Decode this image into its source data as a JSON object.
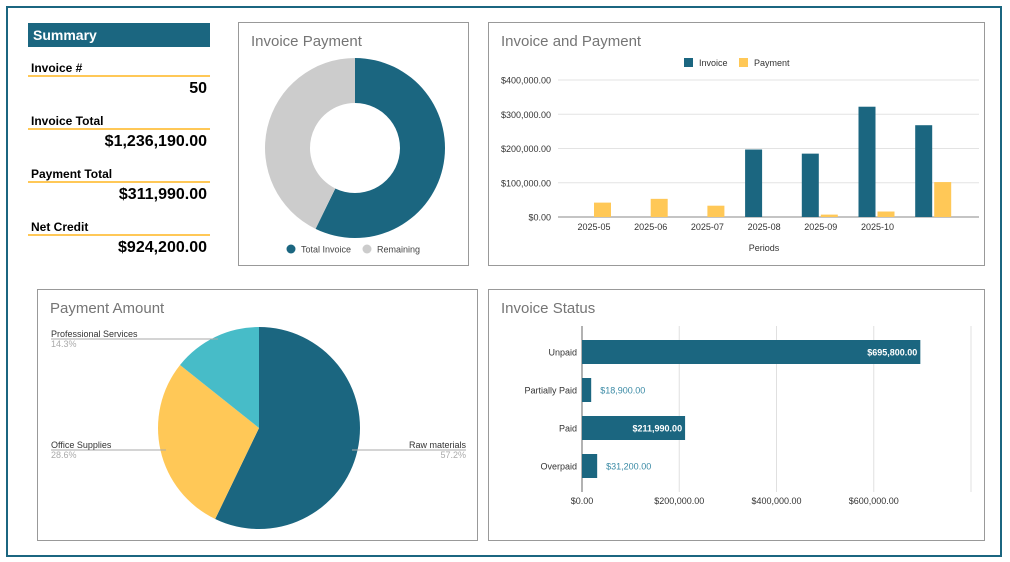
{
  "colors": {
    "frame": "#1b6680",
    "teal": "#1b6680",
    "yellow": "#ffc857",
    "cyan": "#47bcc8",
    "gray": "#cccccc",
    "accent_line": "#ffc857"
  },
  "summary": {
    "title": "Summary",
    "items": [
      {
        "label": "Invoice #",
        "value": "50"
      },
      {
        "label": "Invoice Total",
        "value": "$1,236,190.00"
      },
      {
        "label": "Payment Total",
        "value": "$311,990.00"
      },
      {
        "label": "Net Credit",
        "value": "$924,200.00"
      }
    ]
  },
  "chart_data": [
    {
      "type": "pie",
      "title": "Invoice Payment",
      "donut": true,
      "legend": "bottom",
      "series": [
        {
          "name": "Total Invoice",
          "value": 1236190,
          "color": "#1b6680"
        },
        {
          "name": "Remaining",
          "value": 924200,
          "color": "#cccccc"
        }
      ]
    },
    {
      "type": "bar",
      "title": "Invoice and Payment",
      "xlabel": "Periods",
      "legend": "top",
      "grid": true,
      "categories": [
        "2025-05",
        "2025-06",
        "2025-07",
        "2025-08",
        "2025-09",
        "2025-10",
        ""
      ],
      "ylim": [
        0,
        400000
      ],
      "yticks": [
        "$0.00",
        "$100,000.00",
        "$200,000.00",
        "$300,000.00",
        "$400,000.00"
      ],
      "series": [
        {
          "name": "Invoice",
          "color": "#1b6680",
          "values": [
            0,
            0,
            0,
            197000,
            185000,
            322000,
            268000
          ]
        },
        {
          "name": "Payment",
          "color": "#ffc857",
          "values": [
            42000,
            53000,
            33000,
            0,
            7000,
            16000,
            102000
          ]
        }
      ]
    },
    {
      "type": "pie",
      "title": "Payment Amount",
      "legend": "labels",
      "series": [
        {
          "name": "Raw materials",
          "percent": "57.2%",
          "value": 57.2,
          "color": "#1b6680"
        },
        {
          "name": "Office Supplies",
          "percent": "28.6%",
          "value": 28.6,
          "color": "#ffc857"
        },
        {
          "name": "Professional Services",
          "percent": "14.3%",
          "value": 14.3,
          "color": "#47bcc8"
        }
      ]
    },
    {
      "type": "bar",
      "orientation": "horizontal",
      "title": "Invoice Status",
      "grid": true,
      "categories": [
        "Unpaid",
        "Partially Paid",
        "Paid",
        "Overpaid"
      ],
      "values": [
        695800,
        18900,
        211990,
        31200
      ],
      "data_labels": [
        "$695,800.00",
        "$18,900.00",
        "$211,990.00",
        "$31,200.00"
      ],
      "xlim": [
        0,
        800000
      ],
      "xticks": [
        "$0.00",
        "$200,000.00",
        "$400,000.00",
        "$600,000.00"
      ]
    }
  ]
}
